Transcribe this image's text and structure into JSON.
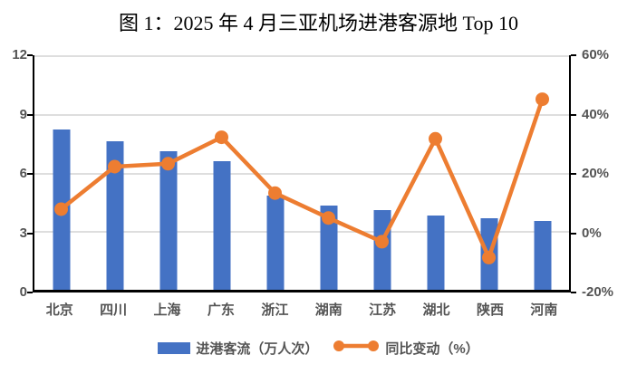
{
  "title": "图 1：2025 年 4 月三亚机场进港客源地 Top 10",
  "colors": {
    "bar": "#4472C4",
    "line": "#ED7D31",
    "axis_label": "#545454",
    "gridline": "#DEDEDE",
    "axis_line": "#000000"
  },
  "legend": {
    "bar_label": "进港客流（万人次）",
    "line_label": "同比变动（%）"
  },
  "chart_data": {
    "type": "bar+line combo",
    "title": "图 1：2025 年 4 月三亚机场进港客源地 Top 10",
    "categories": [
      "北京",
      "四川",
      "上海",
      "广东",
      "浙江",
      "湖南",
      "江苏",
      "湖北",
      "陕西",
      "河南"
    ],
    "series": [
      {
        "name": "进港客流（万人次）",
        "type": "bar",
        "axis": "left",
        "values": [
          8.2,
          7.6,
          7.1,
          6.6,
          4.8,
          4.3,
          4.1,
          3.8,
          3.65,
          3.5
        ]
      },
      {
        "name": "同比变动（%）",
        "type": "line",
        "axis": "right",
        "values": [
          7.5,
          22,
          23,
          32,
          13,
          4.5,
          -3.6,
          31.5,
          -9,
          45
        ]
      }
    ],
    "left_axis": {
      "min": 0,
      "max": 12,
      "ticks": [
        "12",
        "9",
        "6",
        "3",
        "0"
      ]
    },
    "right_axis": {
      "min": -20,
      "max": 60,
      "ticks": [
        "60%",
        "40%",
        "20%",
        "0%",
        "-20%"
      ]
    },
    "grid": true,
    "legend_position": "bottom"
  }
}
